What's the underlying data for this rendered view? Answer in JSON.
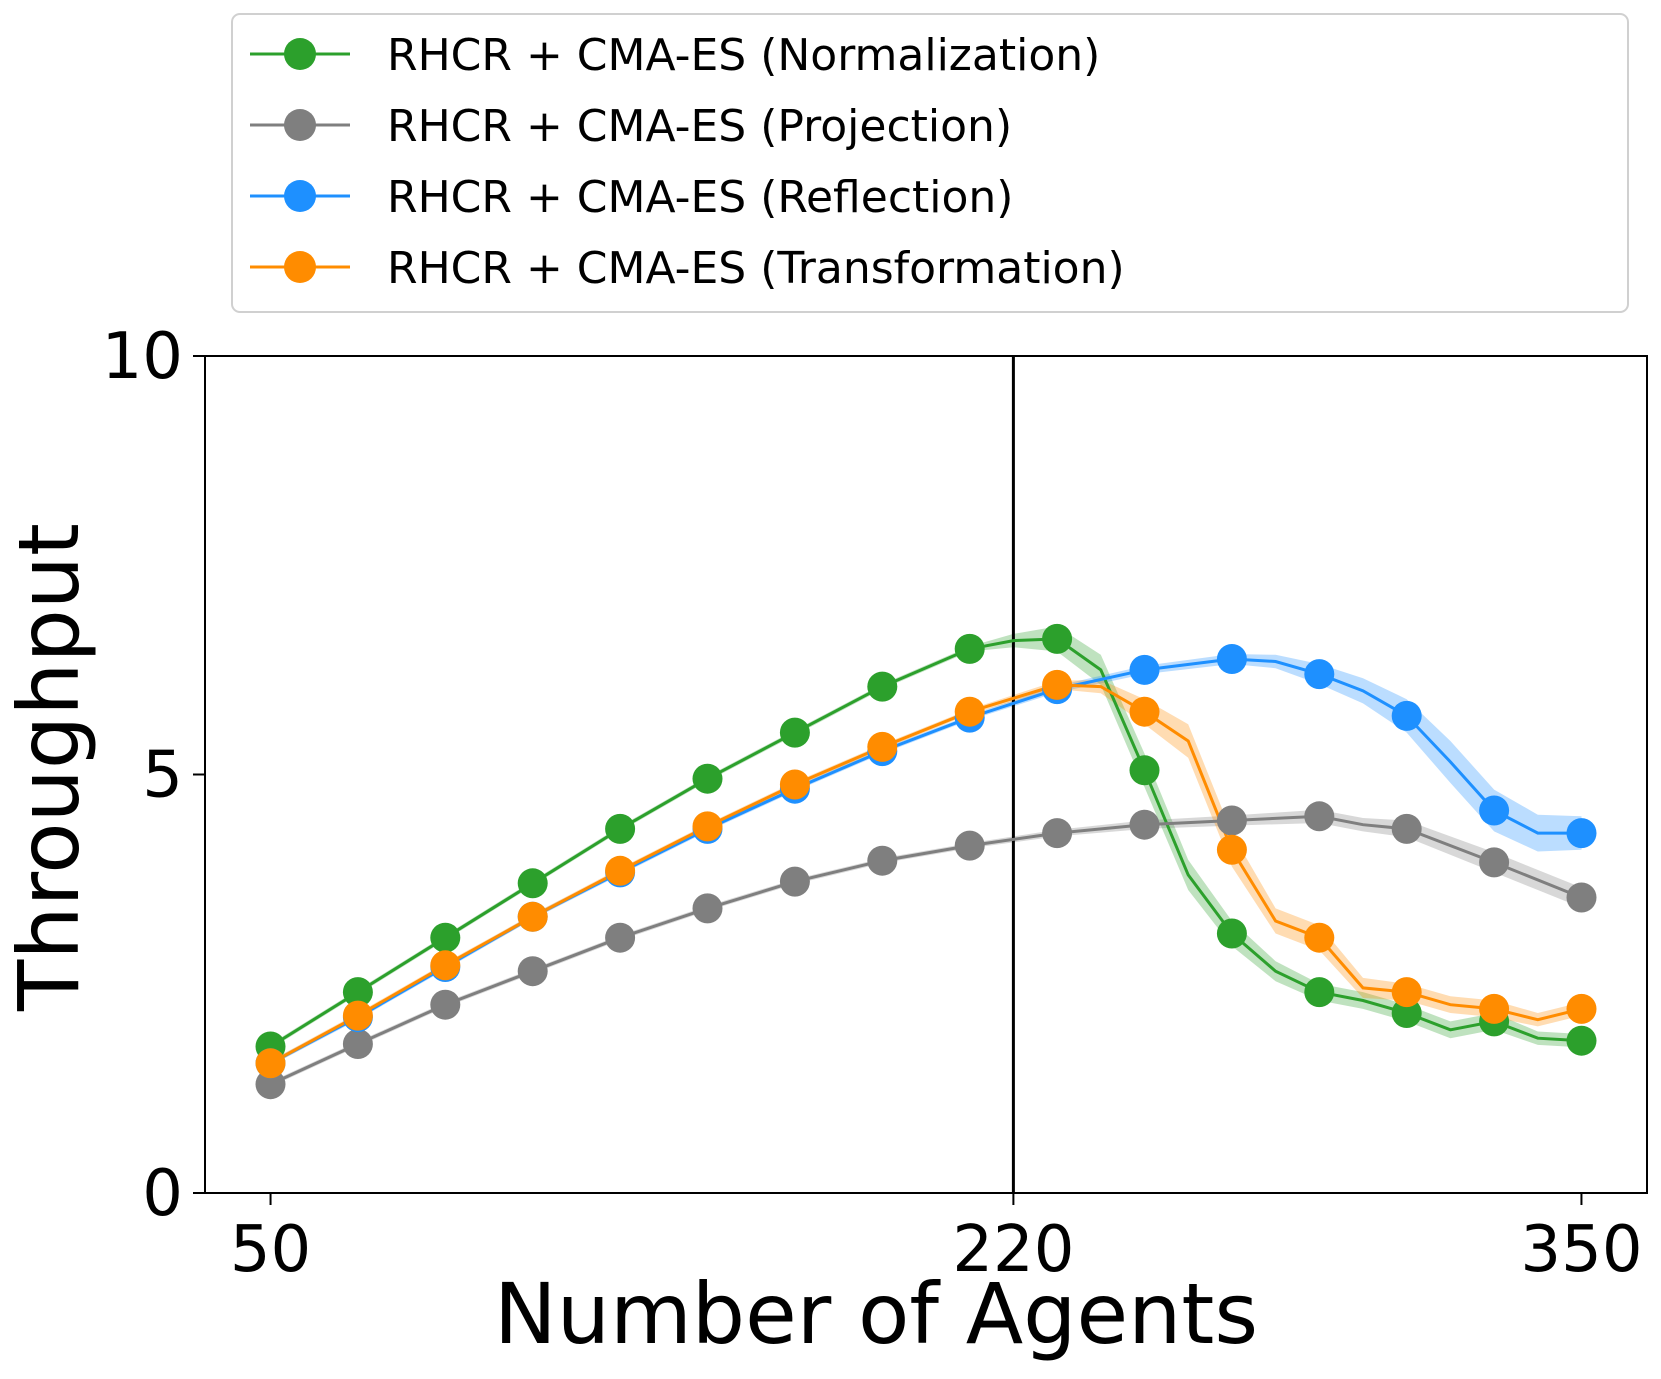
{
  "chart_data": {
    "type": "line",
    "xlabel": "Number of Agents",
    "ylabel": "Throughput",
    "xlim": [
      35,
      365
    ],
    "ylim": [
      0,
      10
    ],
    "xticks": [
      50,
      220,
      350
    ],
    "xtick_labels": [
      "50",
      "220",
      "350"
    ],
    "yticks": [
      0,
      5,
      10
    ],
    "ytick_labels": [
      "0",
      "5",
      "10"
    ],
    "vline_x": 220,
    "grid": false,
    "legend_position": "top",
    "series": [
      {
        "name": "RHCR + CMA-ES (Normalization)",
        "color": "#2ca02c",
        "x": [
          50,
          70,
          90,
          110,
          130,
          150,
          170,
          190,
          210,
          220,
          230,
          240,
          250,
          260,
          270,
          280,
          290,
          300,
          310,
          320,
          330,
          340,
          350
        ],
        "y": [
          1.75,
          2.4,
          3.05,
          3.7,
          4.35,
          4.95,
          5.5,
          6.05,
          6.5,
          6.6,
          6.62,
          6.25,
          5.05,
          3.8,
          3.1,
          2.65,
          2.4,
          2.3,
          2.15,
          1.95,
          2.05,
          1.85,
          1.82
        ],
        "band": [
          0.03,
          0.03,
          0.03,
          0.03,
          0.03,
          0.03,
          0.03,
          0.03,
          0.03,
          0.08,
          0.15,
          0.18,
          0.2,
          0.18,
          0.15,
          0.12,
          0.1,
          0.1,
          0.1,
          0.1,
          0.1,
          0.08,
          0.08
        ]
      },
      {
        "name": "RHCR + CMA-ES (Projection)",
        "color": "#7f7f7f",
        "x": [
          50,
          70,
          90,
          110,
          130,
          150,
          170,
          190,
          210,
          230,
          250,
          270,
          290,
          300,
          310,
          330,
          350
        ],
        "y": [
          1.3,
          1.78,
          2.25,
          2.65,
          3.05,
          3.4,
          3.72,
          3.97,
          4.15,
          4.3,
          4.4,
          4.45,
          4.5,
          4.4,
          4.35,
          3.95,
          3.53
        ],
        "band": [
          0.03,
          0.03,
          0.03,
          0.03,
          0.03,
          0.03,
          0.03,
          0.03,
          0.03,
          0.04,
          0.05,
          0.06,
          0.08,
          0.08,
          0.1,
          0.12,
          0.12
        ]
      },
      {
        "name": "RHCR + CMA-ES (Reflection)",
        "color": "#1e90ff",
        "x": [
          50,
          70,
          90,
          110,
          130,
          150,
          170,
          190,
          210,
          230,
          250,
          270,
          280,
          290,
          300,
          310,
          320,
          330,
          340,
          350
        ],
        "y": [
          1.55,
          2.1,
          2.7,
          3.3,
          3.83,
          4.35,
          4.83,
          5.28,
          5.68,
          6.02,
          6.25,
          6.38,
          6.35,
          6.2,
          6.0,
          5.7,
          5.15,
          4.57,
          4.3,
          4.3
        ],
        "band": [
          0.03,
          0.03,
          0.03,
          0.03,
          0.03,
          0.03,
          0.03,
          0.03,
          0.03,
          0.04,
          0.05,
          0.06,
          0.08,
          0.12,
          0.15,
          0.2,
          0.25,
          0.25,
          0.22,
          0.2
        ]
      },
      {
        "name": "RHCR + CMA-ES (Transformation)",
        "color": "#ff8c00",
        "x": [
          50,
          70,
          90,
          110,
          130,
          150,
          170,
          190,
          210,
          230,
          240,
          250,
          260,
          270,
          280,
          290,
          300,
          310,
          320,
          330,
          340,
          350
        ],
        "y": [
          1.55,
          2.12,
          2.72,
          3.3,
          3.85,
          4.38,
          4.88,
          5.33,
          5.75,
          6.07,
          6.05,
          5.75,
          5.4,
          4.1,
          3.25,
          3.05,
          2.45,
          2.4,
          2.25,
          2.2,
          2.07,
          2.2
        ],
        "band": [
          0.03,
          0.03,
          0.03,
          0.03,
          0.03,
          0.03,
          0.03,
          0.03,
          0.03,
          0.05,
          0.08,
          0.15,
          0.2,
          0.2,
          0.15,
          0.15,
          0.12,
          0.1,
          0.1,
          0.1,
          0.08,
          0.08
        ]
      }
    ],
    "marker_x": [
      50,
      70,
      90,
      110,
      130,
      150,
      170,
      190,
      210,
      230,
      250,
      270,
      290,
      310,
      330,
      350
    ]
  }
}
